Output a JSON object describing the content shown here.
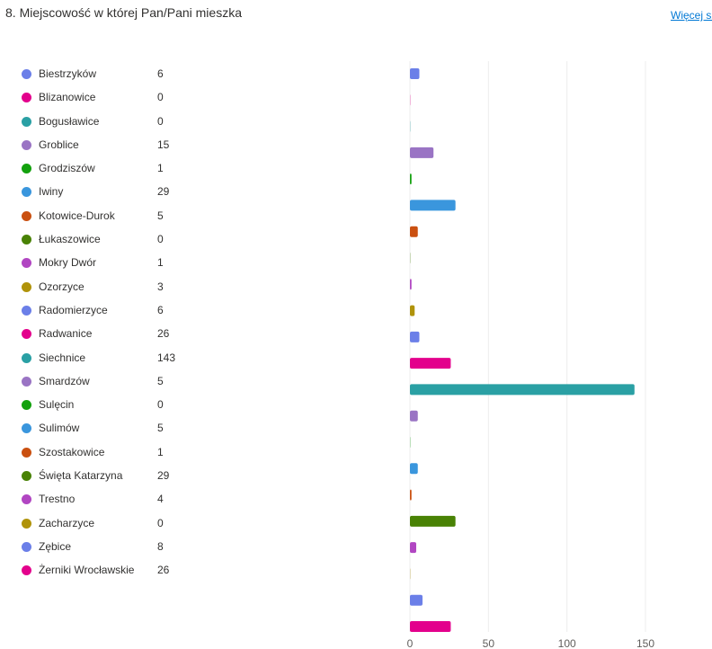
{
  "header": {
    "title": "8. Miejscowość w której Pan/Pani mieszka",
    "more_link": "Więcej sz"
  },
  "chart_data": {
    "type": "bar",
    "orientation": "horizontal",
    "xlim": [
      0,
      150
    ],
    "xticks": [
      0,
      50,
      100,
      150
    ],
    "grid": true,
    "categories": [
      {
        "name": "Biestrzyków",
        "value": 6,
        "color": "#6b7fe8"
      },
      {
        "name": "Blizanowice",
        "value": 0,
        "color": "#e3008c"
      },
      {
        "name": "Bogusławice",
        "value": 0,
        "color": "#2aa0a4"
      },
      {
        "name": "Groblice",
        "value": 15,
        "color": "#9a74c4"
      },
      {
        "name": "Grodziszów",
        "value": 1,
        "color": "#13a10e"
      },
      {
        "name": "Iwiny",
        "value": 29,
        "color": "#3a96dd"
      },
      {
        "name": "Kotowice-Durok",
        "value": 5,
        "color": "#ca5010"
      },
      {
        "name": "Łukaszowice",
        "value": 0,
        "color": "#498205"
      },
      {
        "name": "Mokry Dwór",
        "value": 1,
        "color": "#b146c2"
      },
      {
        "name": "Ozorzyce",
        "value": 3,
        "color": "#b0930a"
      },
      {
        "name": "Radomierzyce",
        "value": 6,
        "color": "#6b7fe8"
      },
      {
        "name": "Radwanice",
        "value": 26,
        "color": "#e3008c"
      },
      {
        "name": "Siechnice",
        "value": 143,
        "color": "#2aa0a4"
      },
      {
        "name": "Smardzów",
        "value": 5,
        "color": "#9a74c4"
      },
      {
        "name": "Sulęcin",
        "value": 0,
        "color": "#13a10e"
      },
      {
        "name": "Sulimów",
        "value": 5,
        "color": "#3a96dd"
      },
      {
        "name": "Szostakowice",
        "value": 1,
        "color": "#ca5010"
      },
      {
        "name": "Święta Katarzyna",
        "value": 29,
        "color": "#498205"
      },
      {
        "name": "Trestno",
        "value": 4,
        "color": "#b146c2"
      },
      {
        "name": "Zacharzyce",
        "value": 0,
        "color": "#b0930a"
      },
      {
        "name": "Zębice",
        "value": 8,
        "color": "#6b7fe8"
      },
      {
        "name": "Żerniki Wrocławskie",
        "value": 26,
        "color": "#e3008c"
      }
    ]
  }
}
